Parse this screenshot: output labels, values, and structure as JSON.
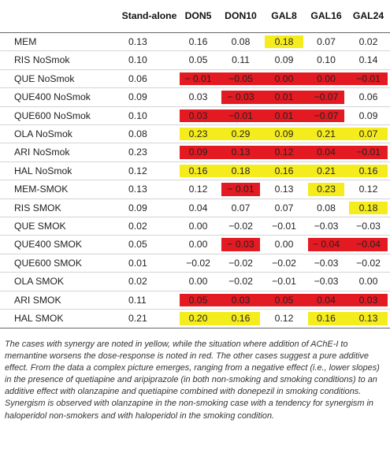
{
  "columns": [
    "",
    "Stand-alone",
    "DON5",
    "DON10",
    "GAL8",
    "GAL16",
    "GAL24"
  ],
  "rows": [
    {
      "label": "MEM",
      "values": [
        "0.13",
        "0.16",
        "0.08",
        "0.18",
        "0.07",
        "0.02"
      ],
      "marks": [
        "",
        "",
        "",
        "y",
        "",
        ""
      ]
    },
    {
      "label": "RIS NoSmok",
      "values": [
        "0.10",
        "0.05",
        "0.11",
        "0.09",
        "0.10",
        "0.14"
      ],
      "marks": [
        "",
        "",
        "",
        "",
        "",
        ""
      ]
    },
    {
      "label": "QUE NoSmok",
      "values": [
        "0.06",
        "− 0.01",
        "−0.05",
        "0.00",
        "0.00",
        "−0.01"
      ],
      "marks": [
        "",
        "r",
        "r",
        "r",
        "r",
        "r"
      ]
    },
    {
      "label": "QUE400 NoSmok",
      "values": [
        "0.09",
        "0.03",
        "− 0.03",
        "0.01",
        "−0.07",
        "0.06"
      ],
      "marks": [
        "",
        "",
        "r",
        "r",
        "r",
        ""
      ]
    },
    {
      "label": "QUE600 NoSmok",
      "values": [
        "0.10",
        "0.03",
        "−0.01",
        "0.01",
        "−0.07",
        "0.09"
      ],
      "marks": [
        "",
        "r",
        "r",
        "r",
        "r",
        ""
      ]
    },
    {
      "label": "OLA NoSmok",
      "values": [
        "0.08",
        "0.23",
        "0.29",
        "0.09",
        "0.21",
        "0.07"
      ],
      "marks": [
        "",
        "y",
        "y",
        "y",
        "y",
        "y"
      ]
    },
    {
      "label": "ARI NoSmok",
      "values": [
        "0.23",
        "0.09",
        "0.13",
        "0.12",
        "0.04",
        "−0.01"
      ],
      "marks": [
        "",
        "r",
        "r",
        "r",
        "r",
        "r"
      ]
    },
    {
      "label": "HAL NoSmok",
      "values": [
        "0.12",
        "0.16",
        "0.18",
        "0.16",
        "0.21",
        "0.16"
      ],
      "marks": [
        "",
        "y",
        "y",
        "y",
        "y",
        "y"
      ]
    },
    {
      "label": "MEM-SMOK",
      "values": [
        "0.13",
        "0.12",
        "− 0.01",
        "0.13",
        "0.23",
        "0.12"
      ],
      "marks": [
        "",
        "",
        "r",
        "",
        "y",
        ""
      ]
    },
    {
      "label": "RIS SMOK",
      "values": [
        "0.09",
        "0.04",
        "0.07",
        "0.07",
        "0.08",
        "0.18"
      ],
      "marks": [
        "",
        "",
        "",
        "",
        "",
        "y"
      ]
    },
    {
      "label": "QUE SMOK",
      "values": [
        "0.02",
        "0.00",
        "−0.02",
        "−0.01",
        "−0.03",
        "−0.03"
      ],
      "marks": [
        "",
        "",
        "",
        "",
        "",
        ""
      ]
    },
    {
      "label": "QUE400 SMOK",
      "values": [
        "0.05",
        "0.00",
        "− 0.03",
        "0.00",
        "− 0.04",
        "−0.04"
      ],
      "marks": [
        "",
        "",
        "r",
        "",
        "r",
        "r"
      ]
    },
    {
      "label": "QUE600 SMOK",
      "values": [
        "0.01",
        "−0.02",
        "−0.02",
        "−0.02",
        "−0.03",
        "−0.02"
      ],
      "marks": [
        "",
        "",
        "",
        "",
        "",
        ""
      ]
    },
    {
      "label": "OLA SMOK",
      "values": [
        "0.02",
        "0.00",
        "−0.02",
        "−0.01",
        "−0.03",
        "0.00"
      ],
      "marks": [
        "",
        "",
        "",
        "",
        "",
        ""
      ]
    },
    {
      "label": "ARI SMOK",
      "values": [
        "0.11",
        "0.05",
        "0.03",
        "0.05",
        "0.04",
        "0.03"
      ],
      "marks": [
        "",
        "r",
        "r",
        "r",
        "r",
        "r"
      ]
    },
    {
      "label": "HAL SMOK",
      "values": [
        "0.21",
        "0.20",
        "0.16",
        "0.12",
        "0.16",
        "0.13"
      ],
      "marks": [
        "",
        "y",
        "y",
        "",
        "y",
        "y"
      ]
    }
  ],
  "caption": "The cases with synergy are noted in yellow, while the situation where addition of AChE-I to memantine worsens the dose-response is noted in red. The other cases suggest a pure additive effect. From the data a complex picture emerges, ranging from a negative effect (i.e., lower slopes) in the presence of quetiapine and aripiprazole (in both non-smoking and smoking conditions) to an additive effect with olanzapine and quetiapine combined with donepezil in smoking conditions. Synergism is observed with olanzapine in the non-smoking case with a tendency for synergism in haloperidol non-smokers and with haloperidol in the smoking condition.",
  "colors": {
    "synergy": "#f5ec1e",
    "worse": "#e41a22"
  }
}
